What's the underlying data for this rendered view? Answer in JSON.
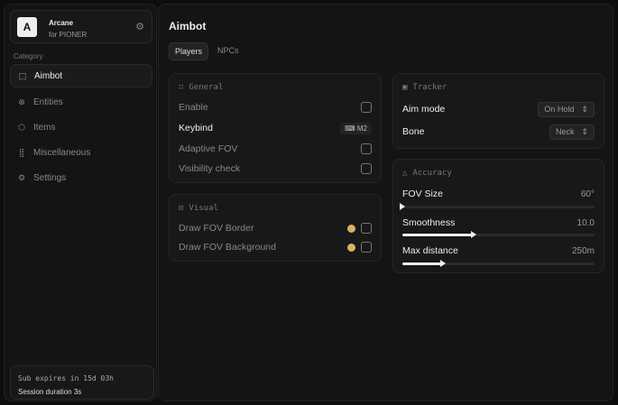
{
  "brand": {
    "logo": "A",
    "name": "Arcane",
    "subtitle": "for PIONER",
    "icon": "settings-icon"
  },
  "sidebar": {
    "category_label": "Category",
    "items": [
      {
        "label": "Aimbot",
        "icon": "crosshair-icon",
        "active": true
      },
      {
        "label": "Entities",
        "icon": "entities-icon"
      },
      {
        "label": "Items",
        "icon": "box-icon"
      },
      {
        "label": "Miscellaneous",
        "icon": "grid-icon"
      },
      {
        "label": "Settings",
        "icon": "gear-icon"
      }
    ]
  },
  "footer": {
    "subscription": "Sub expires in 15d 03h",
    "session": "Session duration 3s"
  },
  "main": {
    "title": "Aimbot",
    "tabs": [
      {
        "label": "Players",
        "active": true
      },
      {
        "label": "NPCs"
      }
    ]
  },
  "general": {
    "title": "General",
    "enable": "Enable",
    "keybind": "Keybind",
    "keybind_value": "M2",
    "adaptive_fov": "Adaptive FOV",
    "visibility_check": "Visibility check"
  },
  "visual": {
    "title": "Visual",
    "draw_border": "Draw FOV Border",
    "draw_background": "Draw FOV Background",
    "color": "#d9b45c"
  },
  "tracker": {
    "title": "Tracker",
    "aim_mode": "Aim mode",
    "aim_mode_value": "On Hold",
    "bone": "Bone",
    "bone_value": "Neck"
  },
  "accuracy": {
    "title": "Accuracy",
    "fov_label": "FOV Size",
    "fov_value": "60°",
    "fov_fraction": 0.0,
    "smooth_label": "Smoothness",
    "smooth_value": "10.0",
    "smooth_fraction": 0.37,
    "dist_label": "Max distance",
    "dist_value": "250m",
    "dist_fraction": 0.21
  }
}
